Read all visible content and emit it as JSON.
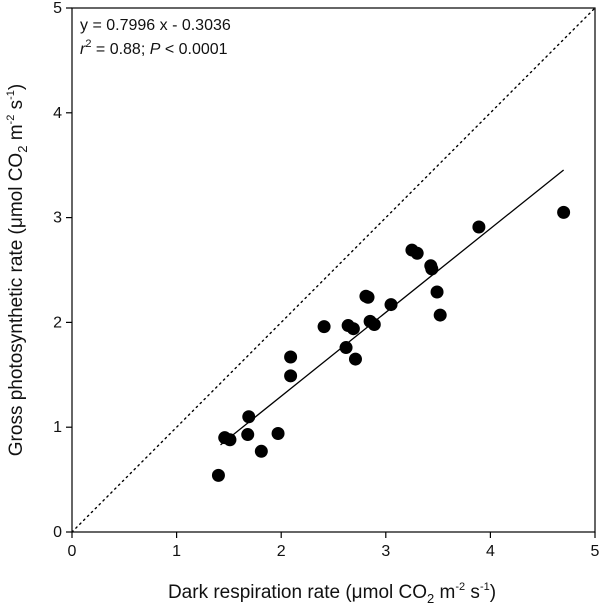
{
  "chart_data": {
    "type": "scatter",
    "xlabel": {
      "prefix": "Dark respiration rate (μmol CO",
      "sub": "2",
      "mid1": " m",
      "sup1": "-2",
      "mid2": " s",
      "sup2": "-1",
      "suffix": ")"
    },
    "ylabel": {
      "prefix": "Gross photosynthetic rate (μmol CO",
      "sub": "2",
      "mid1": " m",
      "sup1": "-2",
      "mid2": " s",
      "sup2": "-1",
      "suffix": ")"
    },
    "xlim": [
      0,
      5
    ],
    "ylim": [
      0,
      5
    ],
    "xticks": [
      "0",
      "1",
      "2",
      "3",
      "4",
      "5"
    ],
    "yticks": [
      "0",
      "1",
      "2",
      "3",
      "4",
      "5"
    ],
    "grid": false,
    "annotation": {
      "equation": "y = 0.7996 x - 0.3036",
      "r_label": "r",
      "r_sup": "2",
      "r_value": " = 0.88; ",
      "p_label": "P",
      "p_value": " < 0.0001"
    },
    "regression": {
      "slope": 0.7996,
      "intercept": -0.3036,
      "x_range": [
        1.42,
        4.7
      ]
    },
    "reference_line": {
      "style": "dotted",
      "slope": 1,
      "intercept": 0
    },
    "points": [
      {
        "x": 1.4,
        "y": 0.54
      },
      {
        "x": 1.46,
        "y": 0.9
      },
      {
        "x": 1.51,
        "y": 0.88
      },
      {
        "x": 1.68,
        "y": 0.93
      },
      {
        "x": 1.69,
        "y": 1.1
      },
      {
        "x": 1.81,
        "y": 0.77
      },
      {
        "x": 1.97,
        "y": 0.94
      },
      {
        "x": 2.09,
        "y": 1.49
      },
      {
        "x": 2.09,
        "y": 1.67
      },
      {
        "x": 2.41,
        "y": 1.96
      },
      {
        "x": 2.62,
        "y": 1.76
      },
      {
        "x": 2.64,
        "y": 1.97
      },
      {
        "x": 2.69,
        "y": 1.94
      },
      {
        "x": 2.71,
        "y": 1.65
      },
      {
        "x": 2.81,
        "y": 2.25
      },
      {
        "x": 2.83,
        "y": 2.24
      },
      {
        "x": 2.85,
        "y": 2.01
      },
      {
        "x": 2.89,
        "y": 1.98
      },
      {
        "x": 3.05,
        "y": 2.17
      },
      {
        "x": 3.25,
        "y": 2.69
      },
      {
        "x": 3.3,
        "y": 2.66
      },
      {
        "x": 3.43,
        "y": 2.54
      },
      {
        "x": 3.44,
        "y": 2.51
      },
      {
        "x": 3.49,
        "y": 2.29
      },
      {
        "x": 3.52,
        "y": 2.07
      },
      {
        "x": 3.89,
        "y": 2.91
      },
      {
        "x": 4.7,
        "y": 3.05
      }
    ]
  }
}
